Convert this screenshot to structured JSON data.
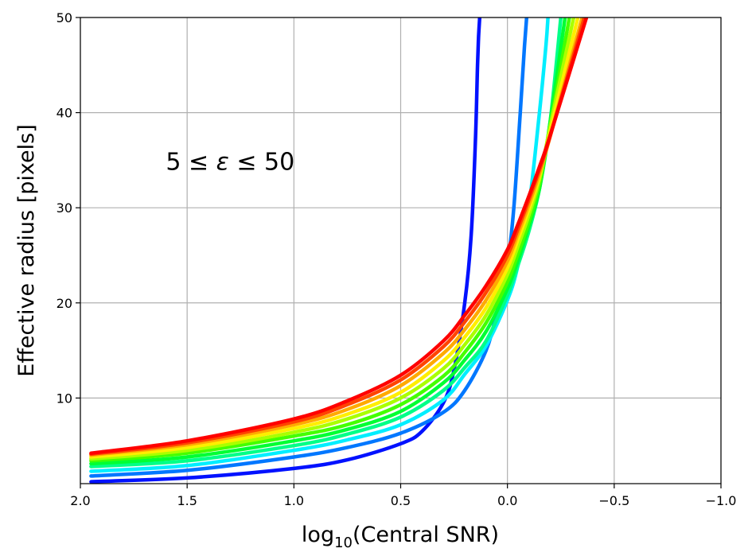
{
  "chart_data": {
    "type": "line",
    "xlabel": "log10(Central SNR)",
    "ylabel": "Effective radius [pixels]",
    "xlim": [
      2.0,
      -1.0
    ],
    "ylim": [
      1,
      50
    ],
    "xaxis_inverted": true,
    "grid": true,
    "x_ticks": [
      "2.0",
      "1.5",
      "1.0",
      "0.5",
      "0.0",
      "−0.5",
      "−1.0"
    ],
    "y_ticks": [
      "10",
      "20",
      "30",
      "40",
      "50"
    ],
    "annotation": {
      "text_prefix": "5 ≤ ",
      "symbol": "ε",
      "text_suffix": " ≤ 50",
      "x": 1.6,
      "y": 34
    },
    "series": [
      {
        "color": "#0011ff",
        "x": [
          1.95,
          1.5,
          1.0,
          0.75,
          0.5,
          0.4,
          0.3,
          0.25,
          0.2,
          0.17,
          0.15,
          0.14,
          0.135,
          0.13
        ],
        "y": [
          1.2,
          1.6,
          2.6,
          3.5,
          5.2,
          6.5,
          9.5,
          13,
          20,
          27,
          37,
          45,
          48,
          50
        ]
      },
      {
        "color": "#0077ff",
        "x": [
          1.95,
          1.5,
          1.0,
          0.75,
          0.5,
          0.3,
          0.2,
          0.1,
          0.05,
          0.0,
          -0.03,
          -0.06,
          -0.08,
          -0.09
        ],
        "y": [
          1.8,
          2.4,
          3.8,
          4.8,
          6.3,
          8.5,
          10.8,
          15,
          19,
          24,
          30,
          40,
          47,
          50
        ]
      },
      {
        "color": "#00eeff",
        "x": [
          1.95,
          1.5,
          1.0,
          0.75,
          0.5,
          0.3,
          0.2,
          0.1,
          0.0,
          -0.05,
          -0.1,
          -0.15,
          -0.18,
          -0.19
        ],
        "y": [
          2.3,
          2.9,
          4.5,
          5.6,
          7.2,
          9.8,
          12.5,
          15.5,
          20.3,
          24,
          30,
          40,
          47,
          50
        ]
      },
      {
        "color": "#00ff88",
        "x": [
          1.95,
          1.5,
          1.0,
          0.75,
          0.5,
          0.3,
          0.2,
          0.1,
          0.0,
          -0.05,
          -0.1,
          -0.15,
          -0.2,
          -0.25
        ],
        "y": [
          2.8,
          3.4,
          5.0,
          6.2,
          8.0,
          10.8,
          13.2,
          16.0,
          20.8,
          24,
          27.5,
          32,
          39,
          50
        ]
      },
      {
        "color": "#00ff33",
        "x": [
          1.95,
          1.5,
          1.0,
          0.75,
          0.5,
          0.3,
          0.2,
          0.1,
          0.0,
          -0.05,
          -0.1,
          -0.15,
          -0.2,
          -0.27
        ],
        "y": [
          3.1,
          3.8,
          5.5,
          6.7,
          8.6,
          11.6,
          14.0,
          17.0,
          21.5,
          24.5,
          28,
          32,
          39,
          50
        ]
      },
      {
        "color": "#44ff00",
        "x": [
          1.95,
          1.5,
          1.0,
          0.75,
          0.5,
          0.3,
          0.2,
          0.1,
          0.0,
          -0.05,
          -0.1,
          -0.15,
          -0.2,
          -0.29
        ],
        "y": [
          3.4,
          4.2,
          6.0,
          7.2,
          9.3,
          12.3,
          14.8,
          17.9,
          22.2,
          25.2,
          28.5,
          32.5,
          38.5,
          50
        ]
      },
      {
        "color": "#aaff00",
        "x": [
          1.95,
          1.5,
          1.0,
          0.75,
          0.5,
          0.3,
          0.2,
          0.1,
          0.0,
          -0.05,
          -0.1,
          -0.15,
          -0.2,
          -0.31
        ],
        "y": [
          3.6,
          4.5,
          6.4,
          7.8,
          10.0,
          13.1,
          15.6,
          18.7,
          23.0,
          26.0,
          29.2,
          33.0,
          38.5,
          50
        ]
      },
      {
        "color": "#ffee00",
        "x": [
          1.95,
          1.5,
          1.0,
          0.75,
          0.5,
          0.3,
          0.2,
          0.1,
          0.0,
          -0.05,
          -0.1,
          -0.15,
          -0.2,
          -0.33
        ],
        "y": [
          3.8,
          4.8,
          6.8,
          8.3,
          10.6,
          13.9,
          16.4,
          19.5,
          23.7,
          26.7,
          29.8,
          33.3,
          38.0,
          50
        ]
      },
      {
        "color": "#ffaa00",
        "x": [
          1.95,
          1.5,
          1.0,
          0.75,
          0.5,
          0.3,
          0.2,
          0.1,
          0.0,
          -0.05,
          -0.1,
          -0.15,
          -0.2,
          -0.35
        ],
        "y": [
          4.0,
          5.1,
          7.2,
          8.8,
          11.3,
          14.7,
          17.2,
          20.3,
          24.4,
          27.3,
          30.3,
          33.6,
          37.5,
          50
        ]
      },
      {
        "color": "#ff4400",
        "x": [
          1.95,
          1.5,
          1.0,
          0.75,
          0.5,
          0.3,
          0.2,
          0.1,
          0.0,
          -0.05,
          -0.1,
          -0.15,
          -0.2,
          -0.36
        ],
        "y": [
          4.1,
          5.3,
          7.5,
          9.3,
          11.9,
          15.4,
          18.0,
          21.1,
          25.0,
          27.8,
          30.8,
          34.0,
          37.5,
          50
        ]
      },
      {
        "color": "#ff0000",
        "x": [
          1.95,
          1.5,
          1.0,
          0.75,
          0.5,
          0.3,
          0.2,
          0.1,
          0.0,
          -0.05,
          -0.1,
          -0.15,
          -0.2,
          -0.37
        ],
        "y": [
          4.2,
          5.5,
          7.8,
          9.7,
          12.4,
          16.0,
          18.7,
          21.8,
          25.6,
          28.3,
          31.2,
          34.3,
          37.6,
          50
        ]
      }
    ]
  }
}
